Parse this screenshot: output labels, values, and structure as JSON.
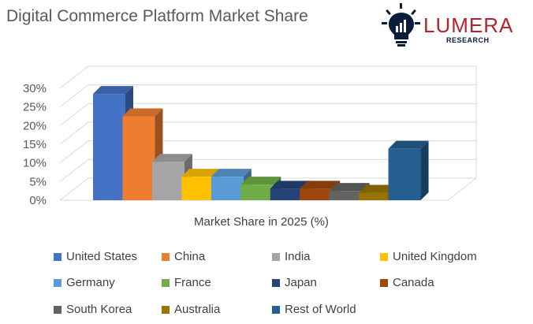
{
  "header": {
    "title": "Digital Commerce Platform Market Share"
  },
  "logo": {
    "name": "LUMERA",
    "sub": "RESEARCH",
    "icon": "lightbulb-icon",
    "name_color": "#b3242b",
    "icon_color": "#0b1d3a"
  },
  "chart_data": {
    "type": "bar",
    "style": "3d",
    "xlabel": "Market Share in 2025 (%)",
    "ylabel": "",
    "ylim": [
      0,
      30
    ],
    "yticks": [
      "0%",
      "5%",
      "10%",
      "15%",
      "20%",
      "25%",
      "30%"
    ],
    "grid": true,
    "legend_position": "bottom",
    "series": [
      {
        "name": "United States",
        "value": 28.5,
        "color": "#4472c4"
      },
      {
        "name": "China",
        "value": 22.5,
        "color": "#ed7d31"
      },
      {
        "name": "India",
        "value": 10.3,
        "color": "#a5a5a5"
      },
      {
        "name": "United Kingdom",
        "value": 6.3,
        "color": "#ffc000"
      },
      {
        "name": "Germany",
        "value": 6.3,
        "color": "#5b9bd5"
      },
      {
        "name": "France",
        "value": 4.2,
        "color": "#70ad47"
      },
      {
        "name": "Japan",
        "value": 3.1,
        "color": "#264478"
      },
      {
        "name": "Canada",
        "value": 3.1,
        "color": "#9e480e"
      },
      {
        "name": "South Korea",
        "value": 2.5,
        "color": "#636363"
      },
      {
        "name": "Australia",
        "value": 2.0,
        "color": "#997300"
      },
      {
        "name": "Rest of World",
        "value": 13.8,
        "color": "#255e91"
      }
    ]
  }
}
